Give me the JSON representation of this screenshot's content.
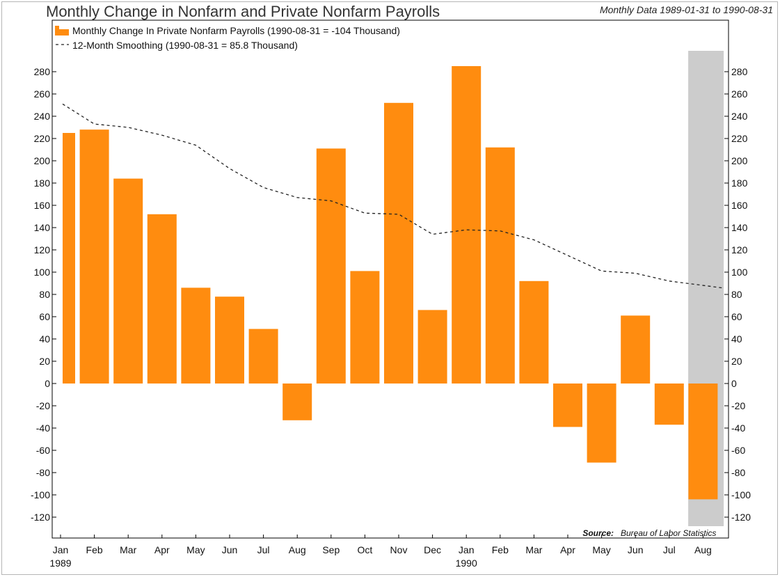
{
  "header": {
    "title": "Monthly Change in Nonfarm and Private Nonfarm Payrolls",
    "subtitle": "Monthly Data 1989-01-31 to 1990-08-31"
  },
  "legend": {
    "bar_label": "Monthly Change In Private Nonfarm Payrolls (1990-08-31 = -104 Thousand)",
    "line_label": "12-Month Smoothing  (1990-08-31 = 85.8 Thousand)"
  },
  "source": {
    "label": "Source:",
    "text": "Bureau of Labor Statistics"
  },
  "colors": {
    "bar": "#ff8c0f",
    "line": "#222222",
    "recession": "#cccccc",
    "axis": "#000000"
  },
  "chart_data": {
    "type": "bar",
    "categories": [
      "Jan",
      "Feb",
      "Mar",
      "Apr",
      "May",
      "Jun",
      "Jul",
      "Aug",
      "Sep",
      "Oct",
      "Nov",
      "Dec",
      "Jan",
      "Feb",
      "Mar",
      "Apr",
      "May",
      "Jun",
      "Jul",
      "Aug"
    ],
    "year_labels": [
      {
        "index": 0,
        "label": "1989"
      },
      {
        "index": 12,
        "label": "1990"
      }
    ],
    "series": [
      {
        "name": "Monthly Change In Private Nonfarm Payrolls (1990-08-31 = -104 Thousand)",
        "type": "bar",
        "values": [
          225,
          228,
          184,
          152,
          86,
          78,
          49,
          -33,
          211,
          101,
          252,
          66,
          285,
          212,
          92,
          -39,
          -71,
          61,
          -37,
          -104
        ]
      },
      {
        "name": "12-Month Smoothing  (1990-08-31 = 85.8 Thousand)",
        "type": "line",
        "style": "dashed",
        "values": [
          251,
          233,
          230,
          223,
          214,
          193,
          176,
          167,
          164,
          153,
          152,
          134,
          138,
          137,
          129,
          115,
          101,
          99,
          92,
          85.8
        ]
      }
    ],
    "recession_shading": {
      "start_index": 19,
      "end_index": 20
    },
    "ylim": [
      -130,
      300
    ],
    "yticks": [
      280,
      260,
      240,
      220,
      200,
      180,
      160,
      140,
      120,
      100,
      80,
      60,
      40,
      20,
      0,
      -20,
      -40,
      -60,
      -80,
      -100,
      -120
    ],
    "y_axis_both_sides": true,
    "legend_position": "top-left",
    "grid": false
  }
}
